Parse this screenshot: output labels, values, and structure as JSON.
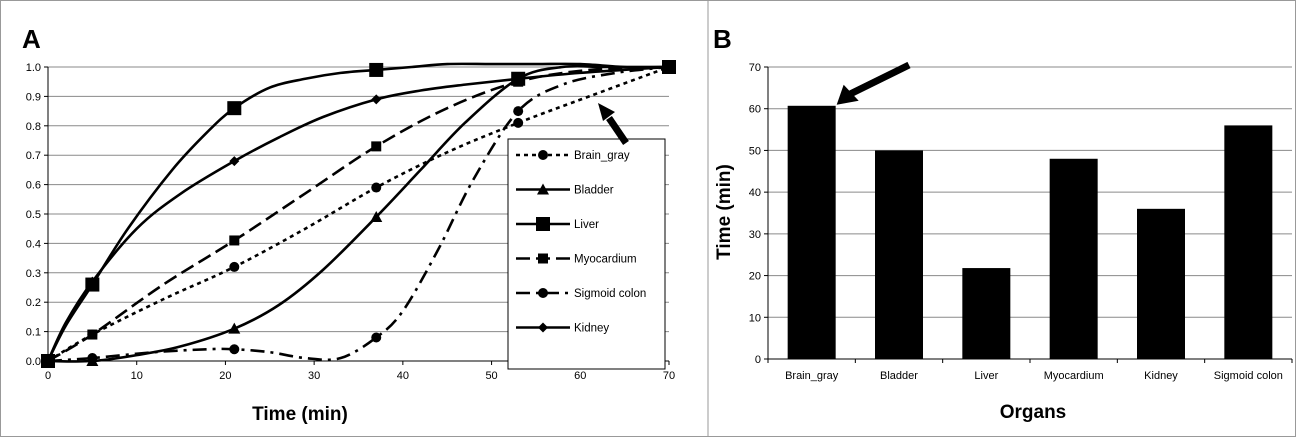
{
  "figure": {
    "panels": [
      "A",
      "B"
    ]
  },
  "chart_data": [
    {
      "type": "line",
      "panel_label": "A",
      "xlabel": "Time (min)",
      "ylabel": "",
      "xlim": [
        0,
        70
      ],
      "ylim": [
        0,
        1.0
      ],
      "xticks": [
        0,
        10,
        20,
        30,
        40,
        50,
        60,
        70
      ],
      "yticks": [
        0.0,
        0.1,
        0.2,
        0.3,
        0.4,
        0.5,
        0.6,
        0.7,
        0.8,
        0.9,
        1.0
      ],
      "ytick_labels": [
        "0.0",
        "0.1",
        "0.2",
        "0.3",
        "0.4",
        "0.5",
        "0.6",
        "0.7",
        "0.8",
        "0.9",
        "1.0"
      ],
      "grid": "horizontal",
      "legend_position": "right",
      "series": [
        {
          "name": "Brain_gray",
          "line_style": "dotted",
          "marker": "circle",
          "markers": [
            [
              0,
              0.0
            ],
            [
              5,
              0.09
            ],
            [
              21,
              0.32
            ],
            [
              37,
              0.59
            ],
            [
              53,
              0.81
            ],
            [
              70,
              1.0
            ]
          ],
          "curve": [
            [
              0,
              0.0
            ],
            [
              5,
              0.09
            ],
            [
              13,
              0.21
            ],
            [
              21,
              0.32
            ],
            [
              29,
              0.45
            ],
            [
              37,
              0.59
            ],
            [
              45,
              0.71
            ],
            [
              53,
              0.81
            ],
            [
              61,
              0.9
            ],
            [
              70,
              1.0
            ]
          ]
        },
        {
          "name": "Bladder",
          "line_style": "solid",
          "marker": "triangle",
          "markers": [
            [
              0,
              0.0
            ],
            [
              5,
              0.0
            ],
            [
              21,
              0.11
            ],
            [
              37,
              0.49
            ],
            [
              53,
              0.96
            ],
            [
              70,
              1.0
            ]
          ],
          "curve": [
            [
              0,
              0.0
            ],
            [
              5,
              0.0
            ],
            [
              10,
              0.02
            ],
            [
              15,
              0.05
            ],
            [
              21,
              0.11
            ],
            [
              26,
              0.19
            ],
            [
              31,
              0.31
            ],
            [
              37,
              0.49
            ],
            [
              42,
              0.65
            ],
            [
              47,
              0.81
            ],
            [
              53,
              0.96
            ],
            [
              58,
              1.0
            ],
            [
              63,
              1.0
            ],
            [
              70,
              1.0
            ]
          ]
        },
        {
          "name": "Liver",
          "line_style": "solid",
          "marker": "square",
          "markers": [
            [
              0,
              0.0
            ],
            [
              5,
              0.26
            ],
            [
              21,
              0.86
            ],
            [
              37,
              0.99
            ],
            [
              53,
              0.96
            ],
            [
              70,
              1.0
            ]
          ],
          "curve": [
            [
              0,
              0.0
            ],
            [
              2,
              0.12
            ],
            [
              5,
              0.26
            ],
            [
              9,
              0.45
            ],
            [
              14,
              0.65
            ],
            [
              18,
              0.78
            ],
            [
              21,
              0.86
            ],
            [
              25,
              0.93
            ],
            [
              29,
              0.96
            ],
            [
              33,
              0.98
            ],
            [
              37,
              0.99
            ],
            [
              41,
              1.0
            ],
            [
              45,
              1.01
            ],
            [
              50,
              1.01
            ],
            [
              55,
              1.01
            ],
            [
              60,
              1.01
            ],
            [
              65,
              1.0
            ],
            [
              70,
              1.0
            ]
          ]
        },
        {
          "name": "Myocardium",
          "line_style": "dashed",
          "marker": "small-square",
          "markers": [
            [
              0,
              0.0
            ],
            [
              5,
              0.09
            ],
            [
              21,
              0.41
            ],
            [
              37,
              0.73
            ],
            [
              53,
              0.95
            ],
            [
              70,
              1.0
            ]
          ],
          "curve": [
            [
              0,
              0.0
            ],
            [
              5,
              0.09
            ],
            [
              13,
              0.26
            ],
            [
              21,
              0.41
            ],
            [
              29,
              0.57
            ],
            [
              37,
              0.73
            ],
            [
              45,
              0.86
            ],
            [
              53,
              0.95
            ],
            [
              61,
              0.99
            ],
            [
              70,
              1.0
            ]
          ]
        },
        {
          "name": "Sigmoid colon",
          "line_style": "dash-dot",
          "marker": "circle",
          "markers": [
            [
              0,
              0.0
            ],
            [
              5,
              0.01
            ],
            [
              21,
              0.04
            ],
            [
              37,
              0.08
            ],
            [
              53,
              0.85
            ],
            [
              70,
              1.0
            ]
          ],
          "curve": [
            [
              0,
              0.0
            ],
            [
              5,
              0.01
            ],
            [
              12,
              0.03
            ],
            [
              18,
              0.04
            ],
            [
              21,
              0.04
            ],
            [
              25,
              0.03
            ],
            [
              29,
              0.01
            ],
            [
              33,
              0.01
            ],
            [
              37,
              0.08
            ],
            [
              40,
              0.17
            ],
            [
              44,
              0.38
            ],
            [
              48,
              0.62
            ],
            [
              53,
              0.85
            ],
            [
              58,
              0.94
            ],
            [
              64,
              0.98
            ],
            [
              70,
              1.0
            ]
          ]
        },
        {
          "name": "Kidney",
          "line_style": "solid",
          "marker": "diamond",
          "markers": [
            [
              0,
              0.0
            ],
            [
              5,
              0.27
            ],
            [
              21,
              0.68
            ],
            [
              37,
              0.89
            ],
            [
              53,
              0.96
            ],
            [
              70,
              1.0
            ]
          ],
          "curve": [
            [
              0,
              0.0
            ],
            [
              2,
              0.13
            ],
            [
              5,
              0.27
            ],
            [
              10,
              0.45
            ],
            [
              15,
              0.57
            ],
            [
              21,
              0.68
            ],
            [
              26,
              0.76
            ],
            [
              31,
              0.83
            ],
            [
              37,
              0.89
            ],
            [
              42,
              0.92
            ],
            [
              47,
              0.94
            ],
            [
              53,
              0.96
            ],
            [
              60,
              0.98
            ],
            [
              70,
              1.0
            ]
          ]
        }
      ],
      "annotation": "arrow pointing to Brain_gray curve near x=62"
    },
    {
      "type": "bar",
      "panel_label": "B",
      "xlabel": "Organs",
      "ylabel": "Time (min)",
      "ylim": [
        0,
        70
      ],
      "yticks": [
        0,
        10,
        20,
        30,
        40,
        50,
        60,
        70
      ],
      "ytick_labels": [
        "0",
        "10",
        "20",
        "30",
        "40",
        "50",
        "60",
        "70"
      ],
      "grid": "horizontal",
      "categories": [
        "Brain_gray",
        "Bladder",
        "Liver",
        "Myocardium",
        "Kidney",
        "Sigmoid colon"
      ],
      "values": [
        60.7,
        50.0,
        21.8,
        48.0,
        36.0,
        56.0
      ],
      "annotation": "arrow pointing to Brain_gray bar"
    }
  ]
}
